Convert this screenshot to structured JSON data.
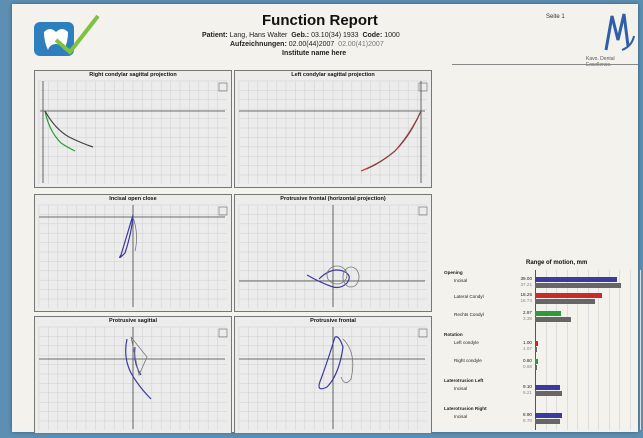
{
  "header": {
    "title": "Function Report",
    "patient_label": "Patient:",
    "patient_name": "Lang, Hans Walter",
    "birth_label": "Geb.:",
    "birth_value": "03.10(34) 1933",
    "code_label": "Code:",
    "code_value": "1000",
    "recordings_label": "Aufzeichnungen:",
    "recording_primary": "02.00(44)2007",
    "recording_secondary": "02.00(41)2007",
    "institute": "Institute name here",
    "page": "Seite 1",
    "brand_text": "Kavo. Dental Excellence."
  },
  "panels": [
    {
      "title": "Right condylar sagittal projection"
    },
    {
      "title": "Left condylar sagittal projection"
    },
    {
      "title": "Incisal open close"
    },
    {
      "title": "Protrusive frontal (horizontal projection)"
    },
    {
      "title": "Protrusive sagittal"
    },
    {
      "title": "Protrusive frontal"
    }
  ],
  "rom": {
    "title": "Range of motion, mm",
    "opening_label": "Opening",
    "rows": [
      {
        "label": "Incisal",
        "value": "39.00",
        "value2": "37.21",
        "bars": [
          {
            "v": 0.78,
            "c": "#3a3aa0"
          },
          {
            "v": 0.82,
            "c": "#666666"
          }
        ]
      },
      {
        "label": "Lateral Condyl",
        "value": "18.25",
        "value2": "16.74",
        "bars": [
          {
            "v": 0.64,
            "c": "#cc2a2a"
          },
          {
            "v": 0.57,
            "c": "#666666"
          }
        ]
      },
      {
        "label": "Rechts Condyl",
        "value": "2.97",
        "value2": "3.38",
        "bars": [
          {
            "v": 0.25,
            "c": "#2f9a3a"
          },
          {
            "v": 0.34,
            "c": "#666666"
          }
        ]
      }
    ],
    "rotation_label": "Rotation",
    "rotation_rows": [
      {
        "label": "Left condyle",
        "value": "1.00",
        "value2": "1.07",
        "bars": [
          {
            "v": 0.03,
            "c": "#cc2a2a"
          },
          {
            "v": 0.02,
            "c": "#666666"
          }
        ]
      },
      {
        "label": "Right condyle",
        "value": "0.60",
        "value2": "0.68",
        "bars": [
          {
            "v": 0.03,
            "c": "#2f9a3a"
          },
          {
            "v": 0.02,
            "c": "#666666"
          }
        ]
      }
    ],
    "lat_left_label": "Laterotrusion Left",
    "lat_left_row": {
      "label": "Incisal",
      "value": "9.10",
      "value2": "9.21",
      "bars": [
        {
          "v": 0.24,
          "c": "#3a3aa0"
        },
        {
          "v": 0.26,
          "c": "#666666"
        }
      ]
    },
    "lat_right_label": "Laterotrusion Right",
    "lat_right_row": {
      "label": "Incisal",
      "value": "8.90",
      "value2": "8.70",
      "bars": [
        {
          "v": 0.26,
          "c": "#3a3aa0"
        },
        {
          "v": 0.24,
          "c": "#666666"
        }
      ]
    }
  },
  "colors": {
    "blue": "#3a3aa0",
    "red": "#cc2a2a",
    "green": "#2f9a3a",
    "gray": "#666666"
  }
}
